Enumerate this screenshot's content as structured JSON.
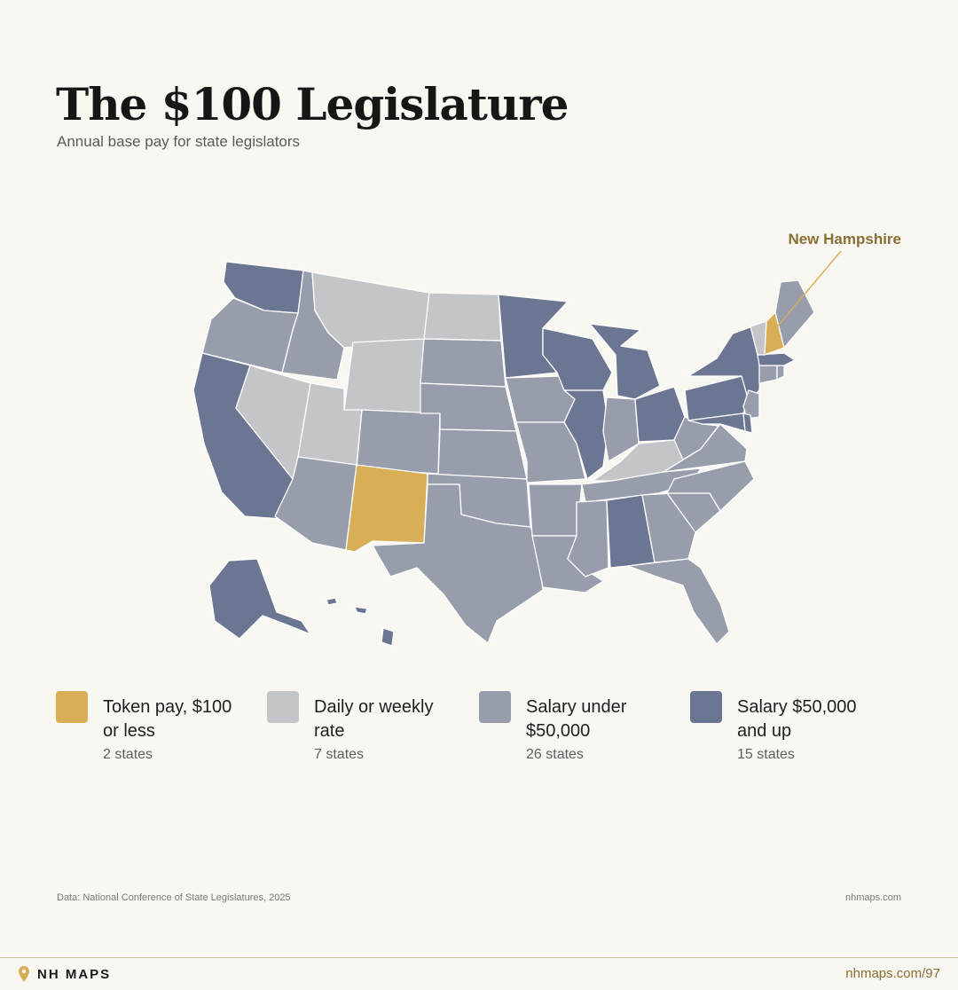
{
  "header": {
    "title": "The $100 Legislature",
    "subtitle": "Annual base pay for state legislators"
  },
  "colors": {
    "token": "#d8ae56",
    "daily": "#c3c5c9",
    "under50k": "#979dab",
    "over50k": "#6b7792",
    "background": "#f9f7f1",
    "accent": "#8a6f34"
  },
  "map": {
    "callout": "New Hampshire",
    "highlighted": [
      "New Hampshire",
      "New Mexico"
    ]
  },
  "legend": [
    {
      "label": "Token pay, $100 or less",
      "count": "2 states",
      "color": "#d8ae56"
    },
    {
      "label": "Daily or weekly rate",
      "count": "7 states",
      "color": "#c3c5c9"
    },
    {
      "label": "Salary under $50,000",
      "count": "26 states",
      "color": "#979dab"
    },
    {
      "label": "Salary $50,000 and up",
      "count": "15 states",
      "color": "#6b7792"
    }
  ],
  "footer": {
    "source": "Data: National Conference of State Legislatures, 2025",
    "site": "nhmaps.com",
    "brand": "NH MAPS",
    "url": "nhmaps.com/97",
    "brand_icon": "map-pin-icon"
  }
}
